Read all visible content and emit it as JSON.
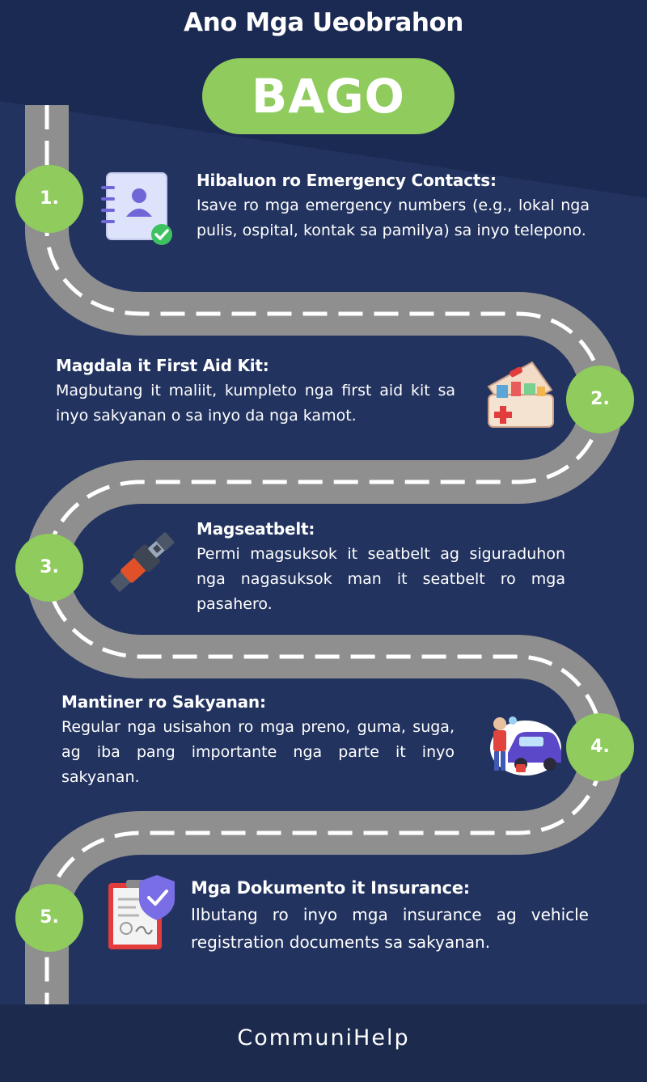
{
  "header": {
    "title": "Ano Mga Ueobrahon",
    "badge": "BAGO"
  },
  "colors": {
    "background": "#22335f",
    "header_dark": "#1b2a52",
    "road": "#8f8f8f",
    "road_dash": "#ffffff",
    "accent_green": "#8fcb5d",
    "footer": "#1c2a4d"
  },
  "steps": [
    {
      "number": "1.",
      "icon": "contact-book-icon",
      "heading": "Hibaluon ro Emergency Contacts:",
      "body": "Isave ro mga emergency numbers (e.g., lokal nga pulis, ospital, kontak sa pamilya) sa inyo telepono."
    },
    {
      "number": "2.",
      "icon": "first-aid-kit-icon",
      "heading": "Magdala it First Aid Kit:",
      "body": "Magbutang it maliit, kumpleto nga first aid kit sa inyo sakyanan o sa inyo da nga kamot."
    },
    {
      "number": "3.",
      "icon": "seatbelt-buckle-icon",
      "heading": "Magseatbelt:",
      "body": "Permi magsuksok it seatbelt ag siguraduhon nga nagasuksok man it seatbelt ro mga pasahero."
    },
    {
      "number": "4.",
      "icon": "car-mechanic-icon",
      "heading": "Mantiner ro Sakyanan:",
      "body": "Regular nga usisahon ro mga preno, guma, suga, ag iba pang importante nga parte it inyo sakyanan."
    },
    {
      "number": "5.",
      "icon": "insurance-document-icon",
      "heading": "Mga Dokumento it Insurance:",
      "body": "IIbutang ro inyo mga insurance ag vehicle registration documents sa sakyanan."
    }
  ],
  "footer": {
    "brand": "CommuniHelp"
  }
}
